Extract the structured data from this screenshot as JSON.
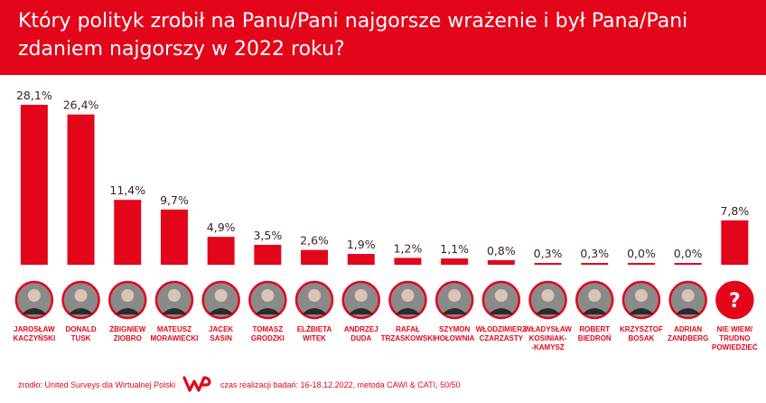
{
  "header": {
    "title_line1": "Który polityk zrobił na Panu/Pani najgorsze wrażenie i był Pana/Pani",
    "title_line2": "zdaniem najgorszy w 2022 roku?"
  },
  "colors": {
    "accent": "#e3061b",
    "text": "#3a1f1f"
  },
  "chart_data": {
    "type": "bar",
    "unit": "%",
    "categories": [
      [
        "JAROSŁAW",
        "KACZYŃSKI"
      ],
      [
        "DONALD",
        "TUSK"
      ],
      [
        "ZBIGNIEW",
        "ZIOBRO"
      ],
      [
        "MATEUSZ",
        "MORAWIECKI"
      ],
      [
        "JACEK",
        "SASIN"
      ],
      [
        "TOMASZ",
        "GRODZKI"
      ],
      [
        "ELŻBIETA",
        "WITEK"
      ],
      [
        "ANDRZEJ",
        "DUDA"
      ],
      [
        "RAFAŁ",
        "TRZASKOWSKI"
      ],
      [
        "SZYMON",
        "HOŁOWNIA"
      ],
      [
        "WŁODZIMIERZ",
        "CZARZASTY"
      ],
      [
        "WŁADYSŁAW",
        "KOSINIAK-",
        "-KAMYSZ"
      ],
      [
        "ROBERT",
        "BIEDROŃ"
      ],
      [
        "KRZYSZTOF",
        "BOSAK"
      ],
      [
        "ADRIAN",
        "ZANDBERG"
      ],
      [
        "NIE WIEM/",
        "TRUDNO",
        "POWIEDZIEĆ"
      ]
    ],
    "values": [
      28.1,
      26.4,
      11.4,
      9.7,
      4.9,
      3.5,
      2.6,
      1.9,
      1.2,
      1.1,
      0.8,
      0.3,
      0.3,
      0.0,
      0.0,
      7.8
    ],
    "value_labels": [
      "28,1%",
      "26,4%",
      "11,4%",
      "9,7%",
      "4,9%",
      "3,5%",
      "2,6%",
      "1,9%",
      "1,2%",
      "1,1%",
      "0,8%",
      "0,3%",
      "0,3%",
      "0,0%",
      "0,0%",
      "7,8%"
    ],
    "unknown_icon": "?",
    "avatar_icons": [
      "portrait-icon",
      "portrait-icon",
      "portrait-icon",
      "portrait-icon",
      "portrait-icon",
      "portrait-icon",
      "portrait-icon",
      "portrait-icon",
      "portrait-icon",
      "portrait-icon",
      "portrait-icon",
      "portrait-icon",
      "portrait-icon",
      "portrait-icon",
      "portrait-icon",
      "question-icon"
    ]
  },
  "footer": {
    "source": "źródło: United Surveys dla Wirtualnej Polski",
    "meta": "czas realizacji badań: 16-18.12.2022, metoda CAWI & CATI, 50/50",
    "logo_icon": "wp-logo-icon"
  }
}
